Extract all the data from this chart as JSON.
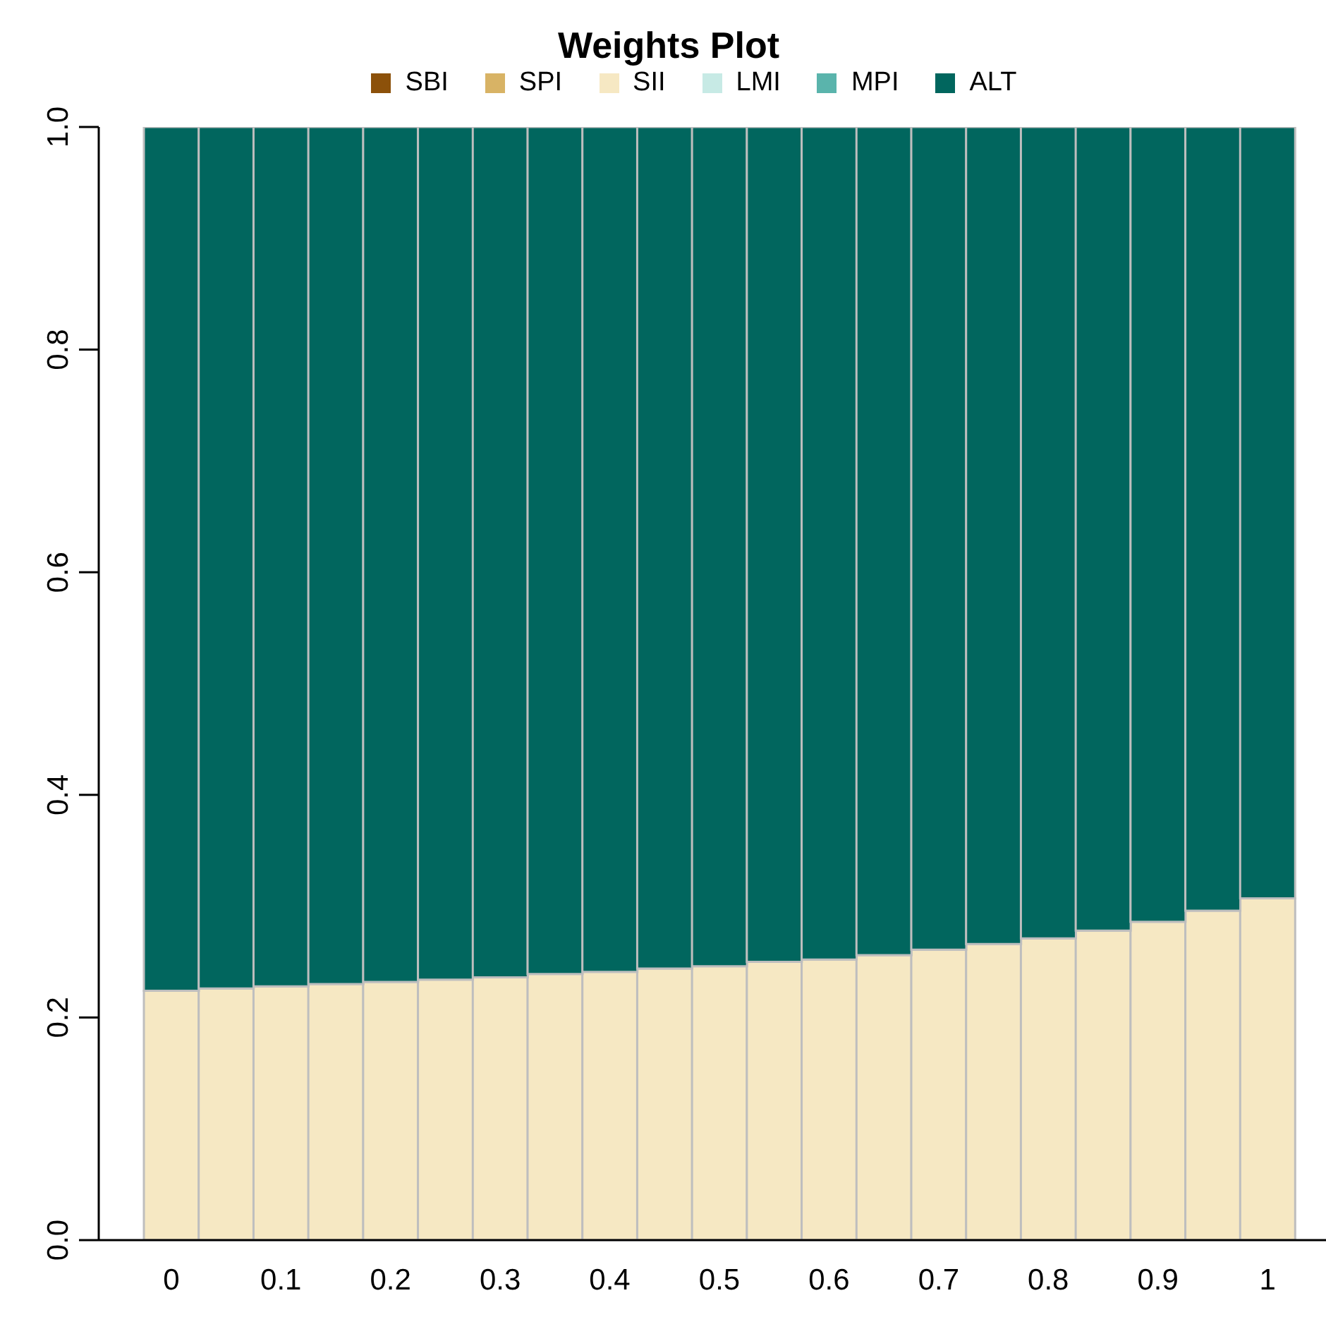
{
  "chart_data": {
    "type": "bar",
    "title": "Weights Plot",
    "stacked": true,
    "legend": "top",
    "grid": false,
    "categories": [
      "0",
      null,
      "0.1",
      null,
      "0.2",
      null,
      "0.3",
      null,
      "0.4",
      null,
      "0.5",
      null,
      "0.6",
      null,
      "0.7",
      null,
      "0.8",
      null,
      "0.9",
      null,
      "1"
    ],
    "ylim": [
      0,
      1
    ],
    "yticks": [
      {
        "value": 0,
        "label": "0.0"
      },
      0.2,
      0.4,
      0.6,
      0.8,
      {
        "value": 1,
        "label": "1.0"
      }
    ],
    "series": [
      {
        "name": "SBI",
        "color": "#8c510a",
        "values": [
          0,
          0,
          0,
          0,
          0,
          0,
          0,
          0,
          0,
          0,
          0,
          0,
          0,
          0,
          0,
          0,
          0,
          0,
          0,
          0,
          0
        ]
      },
      {
        "name": "SPI",
        "color": "#d8b365",
        "values": [
          0,
          0,
          0,
          0,
          0,
          0,
          0,
          0,
          0,
          0,
          0,
          0,
          0,
          0,
          0,
          0,
          0,
          0,
          0,
          0,
          0
        ]
      },
      {
        "name": "SII",
        "color": "#f6e8c3",
        "values": [
          0.224,
          0.226,
          0.228,
          0.23,
          0.232,
          0.234,
          0.236,
          0.239,
          0.241,
          0.244,
          0.246,
          0.25,
          0.252,
          0.256,
          0.261,
          0.266,
          0.271,
          0.278,
          0.286,
          0.296,
          0.307
        ]
      },
      {
        "name": "LMI",
        "color": "#c7eae5",
        "values": [
          0,
          0,
          0,
          0,
          0,
          0,
          0,
          0,
          0,
          0,
          0,
          0,
          0,
          0,
          0,
          0,
          0,
          0,
          0,
          0,
          0
        ]
      },
      {
        "name": "MPI",
        "color": "#5ab4ac",
        "values": [
          0,
          0,
          0,
          0,
          0,
          0,
          0,
          0,
          0,
          0,
          0,
          0,
          0,
          0,
          0,
          0,
          0,
          0,
          0,
          0,
          0
        ]
      },
      {
        "name": "ALT",
        "color": "#01665e",
        "values": [
          0.776,
          0.774,
          0.772,
          0.77,
          0.768,
          0.766,
          0.764,
          0.761,
          0.759,
          0.756,
          0.754,
          0.75,
          0.748,
          0.744,
          0.739,
          0.734,
          0.729,
          0.722,
          0.714,
          0.704,
          0.693
        ]
      }
    ]
  }
}
